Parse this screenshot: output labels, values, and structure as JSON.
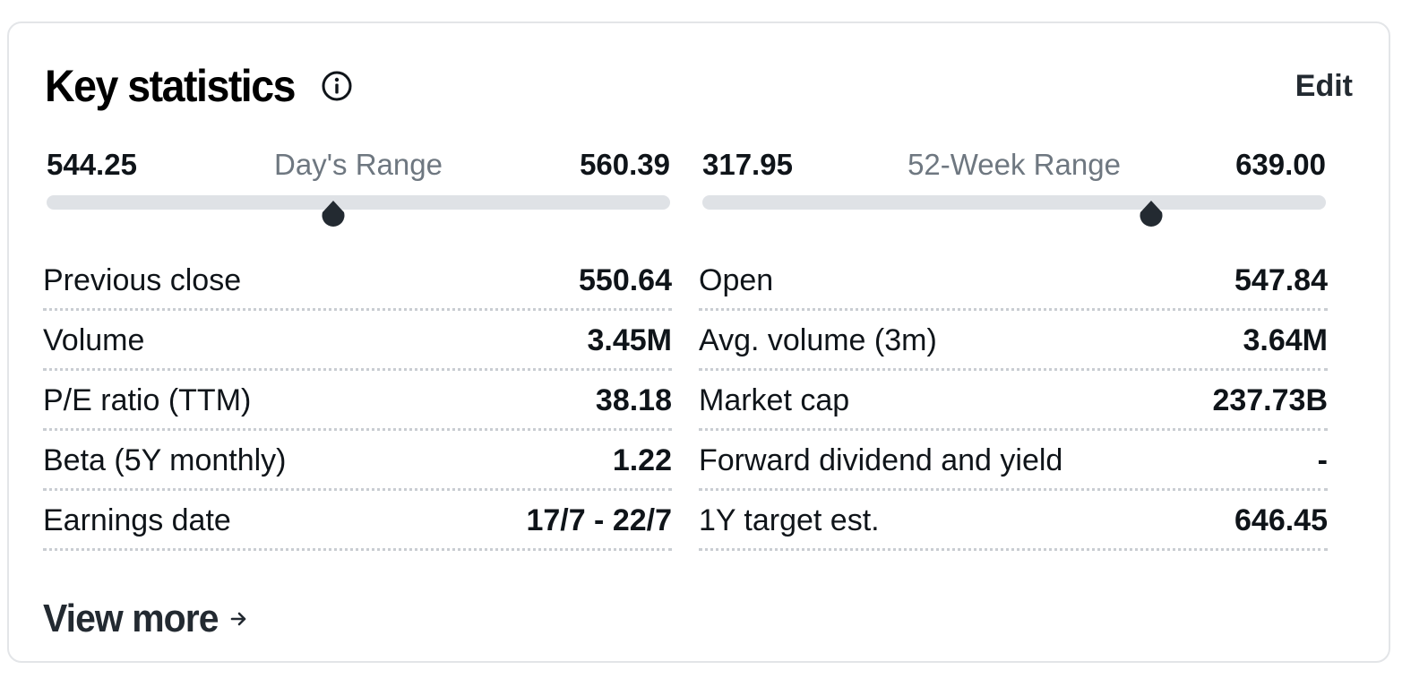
{
  "header": {
    "title": "Key statistics",
    "edit_label": "Edit"
  },
  "ranges": [
    {
      "name": "Day's Range",
      "low": "544.25",
      "high": "560.39",
      "current_fraction": 0.46
    },
    {
      "name": "52-Week Range",
      "low": "317.95",
      "high": "639.00",
      "current_fraction": 0.72
    }
  ],
  "stats_left": [
    {
      "label": "Previous close",
      "value": "550.64"
    },
    {
      "label": "Volume",
      "value": "3.45M"
    },
    {
      "label": "P/E ratio (TTM)",
      "value": "38.18"
    },
    {
      "label": "Beta (5Y monthly)",
      "value": "1.22"
    },
    {
      "label": "Earnings date",
      "value": "17/7 - 22/7"
    }
  ],
  "stats_right": [
    {
      "label": "Open",
      "value": "547.84"
    },
    {
      "label": "Avg. volume (3m)",
      "value": "3.64M"
    },
    {
      "label": "Market cap",
      "value": "237.73B"
    },
    {
      "label": "Forward dividend and yield",
      "value": "-"
    },
    {
      "label": "1Y target est.",
      "value": "646.45"
    }
  ],
  "footer": {
    "view_more_label": "View more"
  },
  "colors": {
    "marker": "#232a31",
    "track": "#dfe2e6",
    "muted_text": "#6e7780"
  },
  "icons": {
    "info": "info-circle-icon",
    "arrow": "arrow-right-icon"
  }
}
